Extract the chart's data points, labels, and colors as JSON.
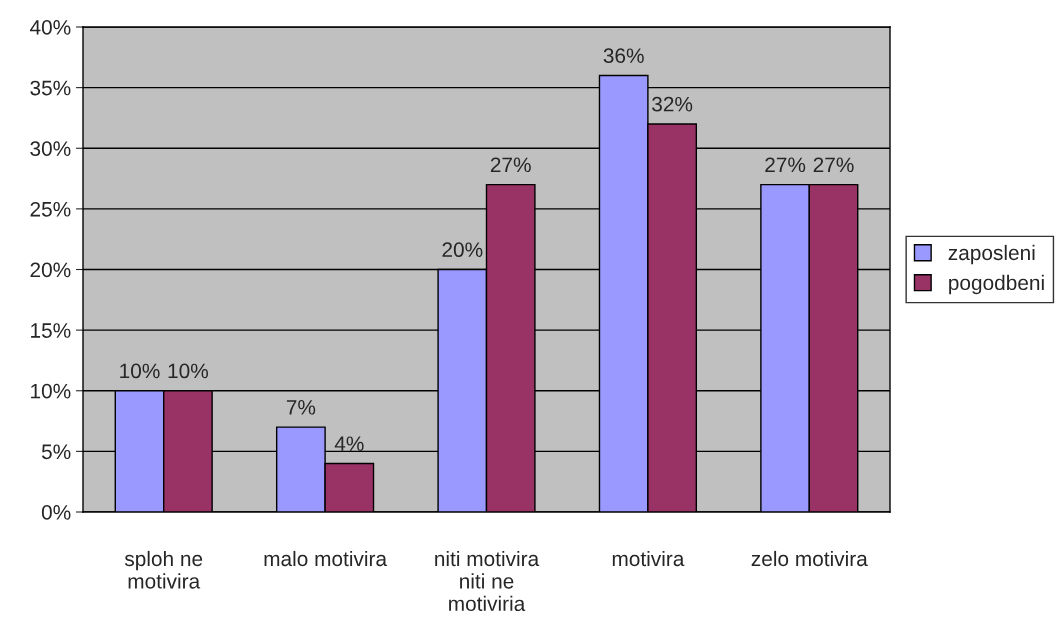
{
  "chart_data": {
    "type": "bar",
    "categories": [
      "sploh ne\nmotivira",
      "malo motivira",
      "niti motivira\nniti ne\nmotiviria",
      "motivira",
      "zelo motivira"
    ],
    "series": [
      {
        "name": "zaposleni",
        "color": "#9999ff",
        "values": [
          10,
          7,
          20,
          36,
          27
        ],
        "value_labels": [
          "10%",
          "7%",
          "20%",
          "36%",
          "27%"
        ]
      },
      {
        "name": "pogodbeni",
        "color": "#993366",
        "values": [
          10,
          4,
          27,
          32,
          27
        ],
        "value_labels": [
          "10%",
          "4%",
          "27%",
          "32%",
          "27%"
        ]
      }
    ],
    "ylim": [
      0,
      40
    ],
    "yticks": [
      {
        "value": 0,
        "label": "0%"
      },
      {
        "value": 5,
        "label": "5%"
      },
      {
        "value": 10,
        "label": "10%"
      },
      {
        "value": 15,
        "label": "15%"
      },
      {
        "value": 20,
        "label": "20%"
      },
      {
        "value": 25,
        "label": "25%"
      },
      {
        "value": 30,
        "label": "30%"
      },
      {
        "value": 35,
        "label": "35%"
      },
      {
        "value": 40,
        "label": "40%"
      }
    ],
    "grid": "y",
    "legend": "right"
  }
}
